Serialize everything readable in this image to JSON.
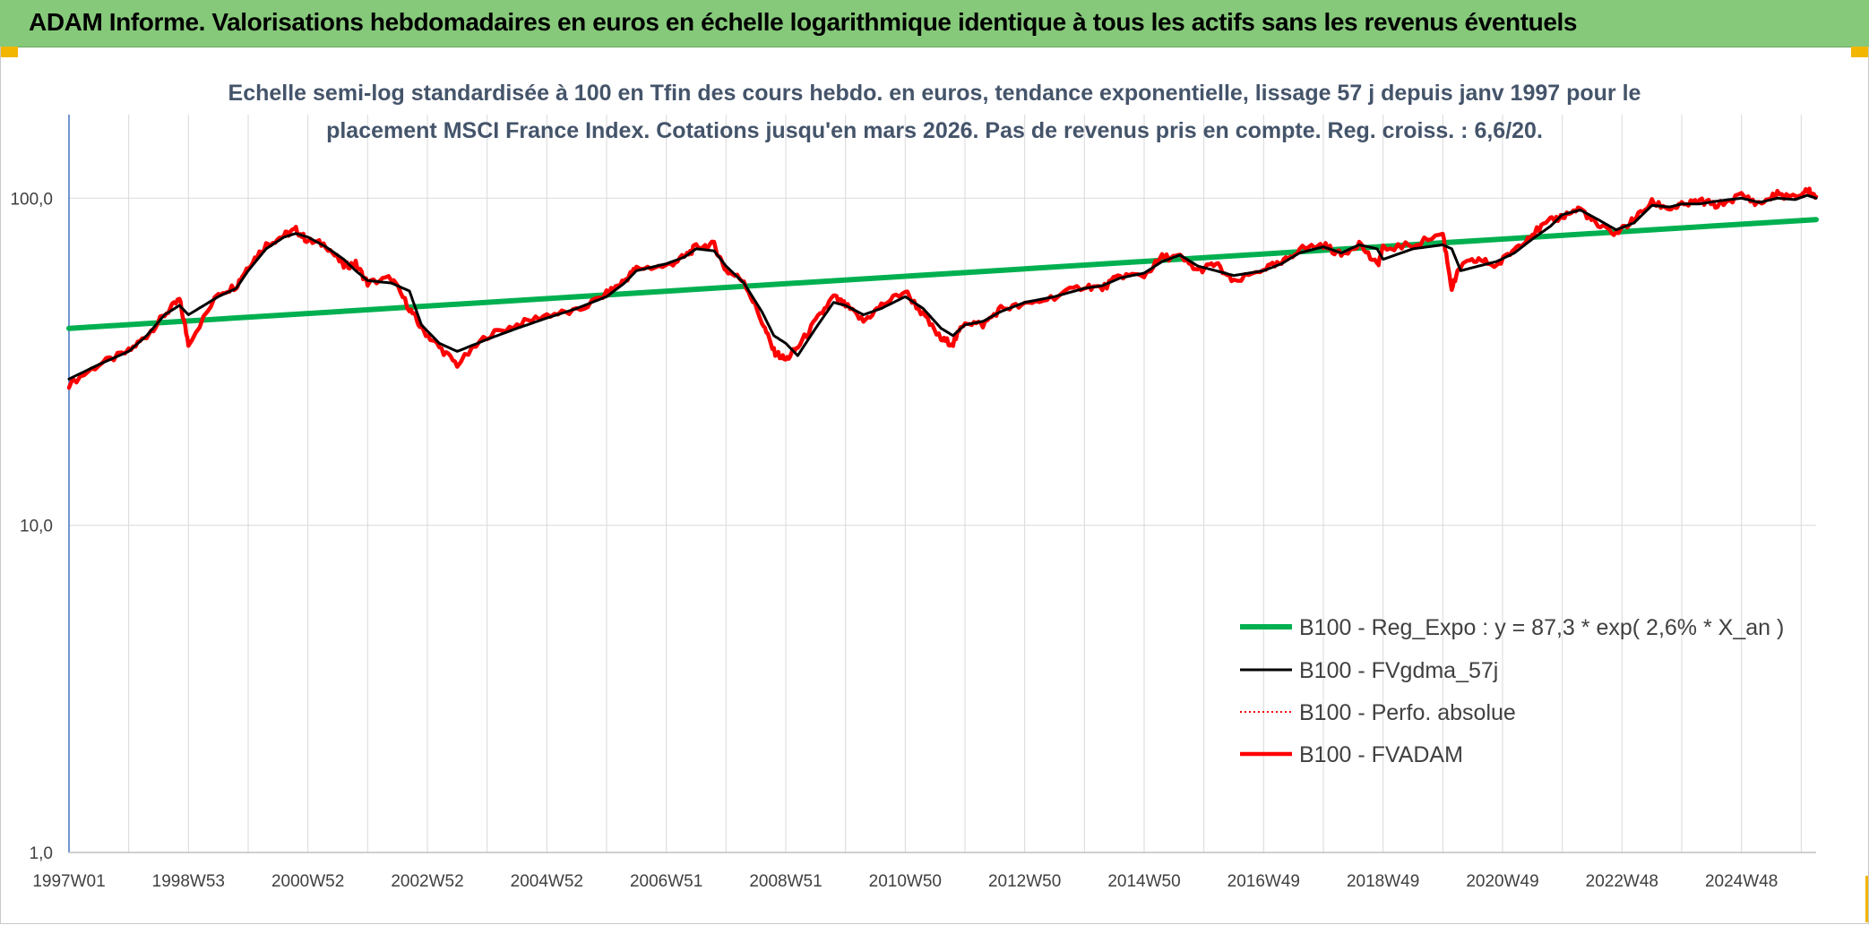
{
  "banner": {
    "title": "ADAM Informe. Valorisations hebdomadaires en euros en échelle logarithmique identique à tous les actifs sans les revenus éventuels"
  },
  "colors": {
    "banner_bg": "#86c97a",
    "corner_marks": "#f2b600",
    "reg_expo": "#00b050",
    "fvgdma": "#000000",
    "perfo": "#ff0000",
    "fvadam": "#ff0000",
    "grid": "#d9d9d9",
    "subtitle": "#44546a"
  },
  "chart_data": {
    "type": "line",
    "subtitle_lines": [
      "Echelle semi-log standardisée à 100 en Tfin des cours hebdo. en euros, tendance exponentielle, lissage 57 j depuis janv 1997 pour le",
      "placement MSCI France Index. Cotations jusqu'en mars 2026. Pas de revenus pris en compte. Reg. croiss. : 6,6/20."
    ],
    "y_scale": "log",
    "ylim": [
      1,
      180
    ],
    "y_ticks": [
      {
        "value": 1,
        "label": "1,0"
      },
      {
        "value": 10,
        "label": "10,0"
      },
      {
        "value": 100,
        "label": "100,0"
      }
    ],
    "xlim": [
      1997.0,
      2026.25
    ],
    "x_ticks": [
      {
        "x": 1997.0,
        "label": "1997W01"
      },
      {
        "x": 1999.0,
        "label": "1998W53"
      },
      {
        "x": 2001.0,
        "label": "2000W52"
      },
      {
        "x": 2003.0,
        "label": "2002W52"
      },
      {
        "x": 2005.0,
        "label": "2004W52"
      },
      {
        "x": 2007.0,
        "label": "2006W51"
      },
      {
        "x": 2009.0,
        "label": "2008W51"
      },
      {
        "x": 2011.0,
        "label": "2010W50"
      },
      {
        "x": 2013.0,
        "label": "2012W50"
      },
      {
        "x": 2015.0,
        "label": "2014W50"
      },
      {
        "x": 2017.0,
        "label": "2016W49"
      },
      {
        "x": 2019.0,
        "label": "2018W49"
      },
      {
        "x": 2021.0,
        "label": "2020W49"
      },
      {
        "x": 2023.0,
        "label": "2022W48"
      },
      {
        "x": 2025.0,
        "label": "2024W48"
      }
    ],
    "grid": true,
    "legend_position": "bottom-right",
    "series": [
      {
        "name": "B100 - Reg_Expo : y = 87,3 * exp( 2,6% *  X_an )",
        "style": "solid-thick",
        "x": [
          1997.0,
          2026.25
        ],
        "y": [
          40.0,
          86.0
        ]
      },
      {
        "name": "B100 - FVgdma_57j",
        "style": "solid-thin",
        "x": [
          1997.0,
          1997.5,
          1998.0,
          1998.3,
          1998.6,
          1998.85,
          1999.0,
          1999.5,
          1999.8,
          2000.0,
          2000.3,
          2000.6,
          2000.8,
          2001.0,
          2001.3,
          2001.6,
          2001.8,
          2002.0,
          2002.4,
          2002.7,
          2002.9,
          2003.2,
          2003.5,
          2004.0,
          2004.5,
          2005.0,
          2005.5,
          2006.0,
          2006.3,
          2006.5,
          2007.0,
          2007.3,
          2007.5,
          2007.8,
          2008.0,
          2008.3,
          2008.6,
          2008.8,
          2009.0,
          2009.2,
          2009.5,
          2009.8,
          2010.0,
          2010.3,
          2010.6,
          2011.0,
          2011.3,
          2011.6,
          2011.8,
          2012.0,
          2012.3,
          2012.6,
          2013.0,
          2013.5,
          2014.0,
          2014.3,
          2014.6,
          2015.0,
          2015.3,
          2015.6,
          2015.9,
          2016.2,
          2016.5,
          2017.0,
          2017.3,
          2017.6,
          2018.0,
          2018.3,
          2018.6,
          2018.9,
          2019.0,
          2019.5,
          2020.0,
          2020.15,
          2020.3,
          2020.6,
          2020.9,
          2021.2,
          2021.5,
          2021.8,
          2022.0,
          2022.3,
          2022.6,
          2022.9,
          2023.2,
          2023.5,
          2023.8,
          2024.0,
          2024.3,
          2024.6,
          2025.0,
          2025.3,
          2025.6,
          2025.9,
          2026.1,
          2026.25
        ],
        "y": [
          28,
          31,
          34,
          38,
          44,
          47,
          44,
          50,
          53,
          60,
          70,
          76,
          78,
          76,
          71,
          65,
          60,
          56,
          55,
          52,
          41,
          36,
          34,
          37,
          40,
          43,
          46,
          50,
          55,
          60,
          63,
          66,
          70,
          69,
          62,
          55,
          45,
          38,
          36,
          33,
          40,
          48,
          47,
          44,
          46,
          50,
          46,
          40,
          38,
          41,
          42,
          45,
          48,
          50,
          53,
          54,
          57,
          59,
          64,
          67,
          62,
          60,
          58,
          60,
          63,
          68,
          71,
          68,
          72,
          70,
          65,
          70,
          72,
          70,
          60,
          62,
          64,
          68,
          75,
          82,
          89,
          92,
          86,
          80,
          84,
          95,
          94,
          96,
          96,
          98,
          100,
          97,
          100,
          99,
          102,
          100
        ]
      },
      {
        "name": "B100 - Perfo. absolue",
        "style": "dotted",
        "x": [],
        "y": []
      },
      {
        "name": "B100 - FVADAM",
        "style": "solid-medium",
        "x": [
          1997.0,
          1997.5,
          1998.0,
          1998.3,
          1998.6,
          1998.85,
          1999.0,
          1999.5,
          1999.8,
          2000.0,
          2000.3,
          2000.6,
          2000.8,
          2001.0,
          2001.3,
          2001.6,
          2001.8,
          2002.0,
          2002.4,
          2002.7,
          2002.9,
          2003.2,
          2003.5,
          2004.0,
          2004.5,
          2005.0,
          2005.5,
          2006.0,
          2006.3,
          2006.5,
          2007.0,
          2007.3,
          2007.5,
          2007.8,
          2008.0,
          2008.3,
          2008.6,
          2008.8,
          2009.0,
          2009.2,
          2009.5,
          2009.8,
          2010.0,
          2010.3,
          2010.6,
          2011.0,
          2011.3,
          2011.6,
          2011.8,
          2012.0,
          2012.3,
          2012.6,
          2013.0,
          2013.5,
          2014.0,
          2014.3,
          2014.6,
          2015.0,
          2015.3,
          2015.6,
          2015.9,
          2016.2,
          2016.5,
          2017.0,
          2017.3,
          2017.6,
          2018.0,
          2018.3,
          2018.6,
          2018.9,
          2019.0,
          2019.5,
          2020.0,
          2020.15,
          2020.3,
          2020.6,
          2020.9,
          2021.2,
          2021.5,
          2021.8,
          2022.0,
          2022.3,
          2022.6,
          2022.9,
          2023.2,
          2023.5,
          2023.8,
          2024.0,
          2024.3,
          2024.6,
          2025.0,
          2025.3,
          2025.6,
          2025.9,
          2026.1,
          2026.25
        ],
        "y": [
          27,
          31,
          34,
          38,
          44,
          49,
          36,
          51,
          54,
          62,
          72,
          77,
          80,
          74,
          72,
          62,
          63,
          55,
          57,
          46,
          40,
          35,
          31,
          38,
          41,
          44,
          45,
          51,
          56,
          61,
          62,
          66,
          71,
          72,
          60,
          56,
          42,
          34,
          32,
          35,
          42,
          50,
          47,
          42,
          47,
          52,
          44,
          37,
          36,
          42,
          41,
          46,
          47,
          50,
          54,
          53,
          58,
          58,
          66,
          66,
          60,
          63,
          55,
          61,
          63,
          70,
          72,
          67,
          73,
          62,
          70,
          72,
          78,
          53,
          62,
          65,
          62,
          70,
          78,
          85,
          88,
          93,
          82,
          78,
          86,
          97,
          93,
          95,
          98,
          95,
          102,
          96,
          103,
          100,
          106,
          101
        ]
      }
    ]
  }
}
